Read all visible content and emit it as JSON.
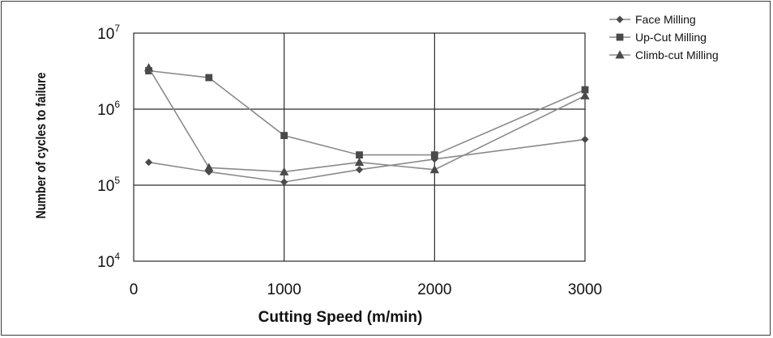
{
  "chart_data": {
    "type": "line",
    "title": "",
    "xlabel": "Cutting Speed (m/min)",
    "ylabel": "Number of cycles to failure",
    "x_scale": "linear",
    "y_scale": "log",
    "xlim": [
      0,
      3000
    ],
    "ylim": [
      10000,
      10000000
    ],
    "x_ticks": [
      "0",
      "1000",
      "2000",
      "3000"
    ],
    "y_ticks": [
      {
        "value": 10000,
        "base": "10",
        "exp": "4"
      },
      {
        "value": 100000,
        "base": "10",
        "exp": "5"
      },
      {
        "value": 1000000,
        "base": "10",
        "exp": "6"
      },
      {
        "value": 10000000,
        "base": "10",
        "exp": "7"
      }
    ],
    "grid": true,
    "legend_position": "top-right (outside plot)",
    "series": [
      {
        "name": "Face Milling",
        "marker": "diamond",
        "color": "#555555",
        "points": [
          [
            100,
            200000
          ],
          [
            500,
            150000
          ],
          [
            1000,
            110000
          ],
          [
            1500,
            160000
          ],
          [
            2000,
            220000
          ],
          [
            3000,
            400000
          ]
        ]
      },
      {
        "name": "Up-Cut Milling",
        "marker": "square",
        "color": "#555555",
        "points": [
          [
            100,
            3200000
          ],
          [
            500,
            2600000
          ],
          [
            1000,
            450000
          ],
          [
            1500,
            250000
          ],
          [
            2000,
            250000
          ],
          [
            3000,
            1800000
          ]
        ]
      },
      {
        "name": "Climb-cut Milling",
        "marker": "triangle",
        "color": "#555555",
        "points": [
          [
            100,
            3500000
          ],
          [
            500,
            170000
          ],
          [
            1000,
            150000
          ],
          [
            1500,
            200000
          ],
          [
            2000,
            160000
          ],
          [
            3000,
            1500000
          ]
        ]
      }
    ]
  }
}
